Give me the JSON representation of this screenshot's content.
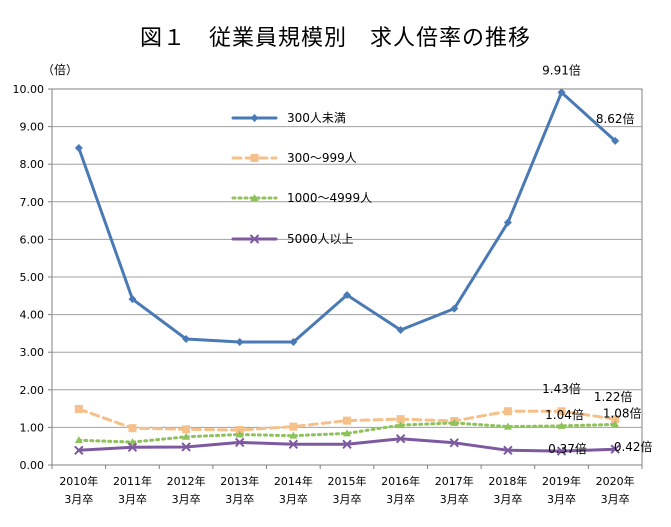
{
  "title": "図１　従業員規模別　求人倍率の推移",
  "chart_data": {
    "type": "line",
    "title": "図１　従業員規模別　求人倍率の推移",
    "ylabel": "（倍）",
    "ylim": [
      0,
      10
    ],
    "ytick_labels": [
      "0.00",
      "1.00",
      "2.00",
      "3.00",
      "4.00",
      "5.00",
      "6.00",
      "7.00",
      "8.00",
      "9.00",
      "10.00"
    ],
    "categories": [
      [
        "2010年",
        "3月卒"
      ],
      [
        "2011年",
        "3月卒"
      ],
      [
        "2012年",
        "3月卒"
      ],
      [
        "2013年",
        "3月卒"
      ],
      [
        "2014年",
        "3月卒"
      ],
      [
        "2015年",
        "3月卒"
      ],
      [
        "2016年",
        "3月卒"
      ],
      [
        "2017年",
        "3月卒"
      ],
      [
        "2018年",
        "3月卒"
      ],
      [
        "2019年",
        "3月卒"
      ],
      [
        "2020年",
        "3月卒"
      ]
    ],
    "grid": true,
    "legend_position": "upper-left inside plot",
    "series": [
      {
        "name": "300人未満",
        "color": "#4a7ab5",
        "style": "solid",
        "marker": "diamond",
        "values": [
          8.43,
          4.41,
          3.35,
          3.27,
          3.27,
          4.52,
          3.59,
          4.16,
          6.45,
          9.91,
          8.62
        ]
      },
      {
        "name": "300～999人",
        "color": "#f5c08a",
        "style": "dashed",
        "marker": "square",
        "values": [
          1.49,
          0.98,
          0.95,
          0.93,
          1.02,
          1.18,
          1.22,
          1.17,
          1.43,
          1.43,
          1.22
        ]
      },
      {
        "name": "1000～4999人",
        "color": "#8fc25a",
        "style": "dotted",
        "marker": "triangle",
        "values": [
          0.66,
          0.61,
          0.75,
          0.81,
          0.78,
          0.84,
          1.06,
          1.12,
          1.02,
          1.04,
          1.08
        ]
      },
      {
        "name": "5000人以上",
        "color": "#7d5aa0",
        "style": "solid",
        "marker": "x",
        "values": [
          0.39,
          0.47,
          0.48,
          0.6,
          0.55,
          0.55,
          0.7,
          0.59,
          0.39,
          0.37,
          0.42
        ]
      }
    ],
    "annotations": [
      {
        "text": "9.91倍",
        "series": 0,
        "index": 9
      },
      {
        "text": "8.62倍",
        "series": 0,
        "index": 10
      },
      {
        "text": "1.43倍",
        "series": 1,
        "index": 9
      },
      {
        "text": "1.22倍",
        "series": 1,
        "index": 10
      },
      {
        "text": "1.04倍",
        "series": 2,
        "index": 9
      },
      {
        "text": "1.08倍",
        "series": 2,
        "index": 10
      },
      {
        "text": "0.37倍",
        "series": 3,
        "index": 9
      },
      {
        "text": "0.42倍",
        "series": 3,
        "index": 10
      }
    ]
  }
}
